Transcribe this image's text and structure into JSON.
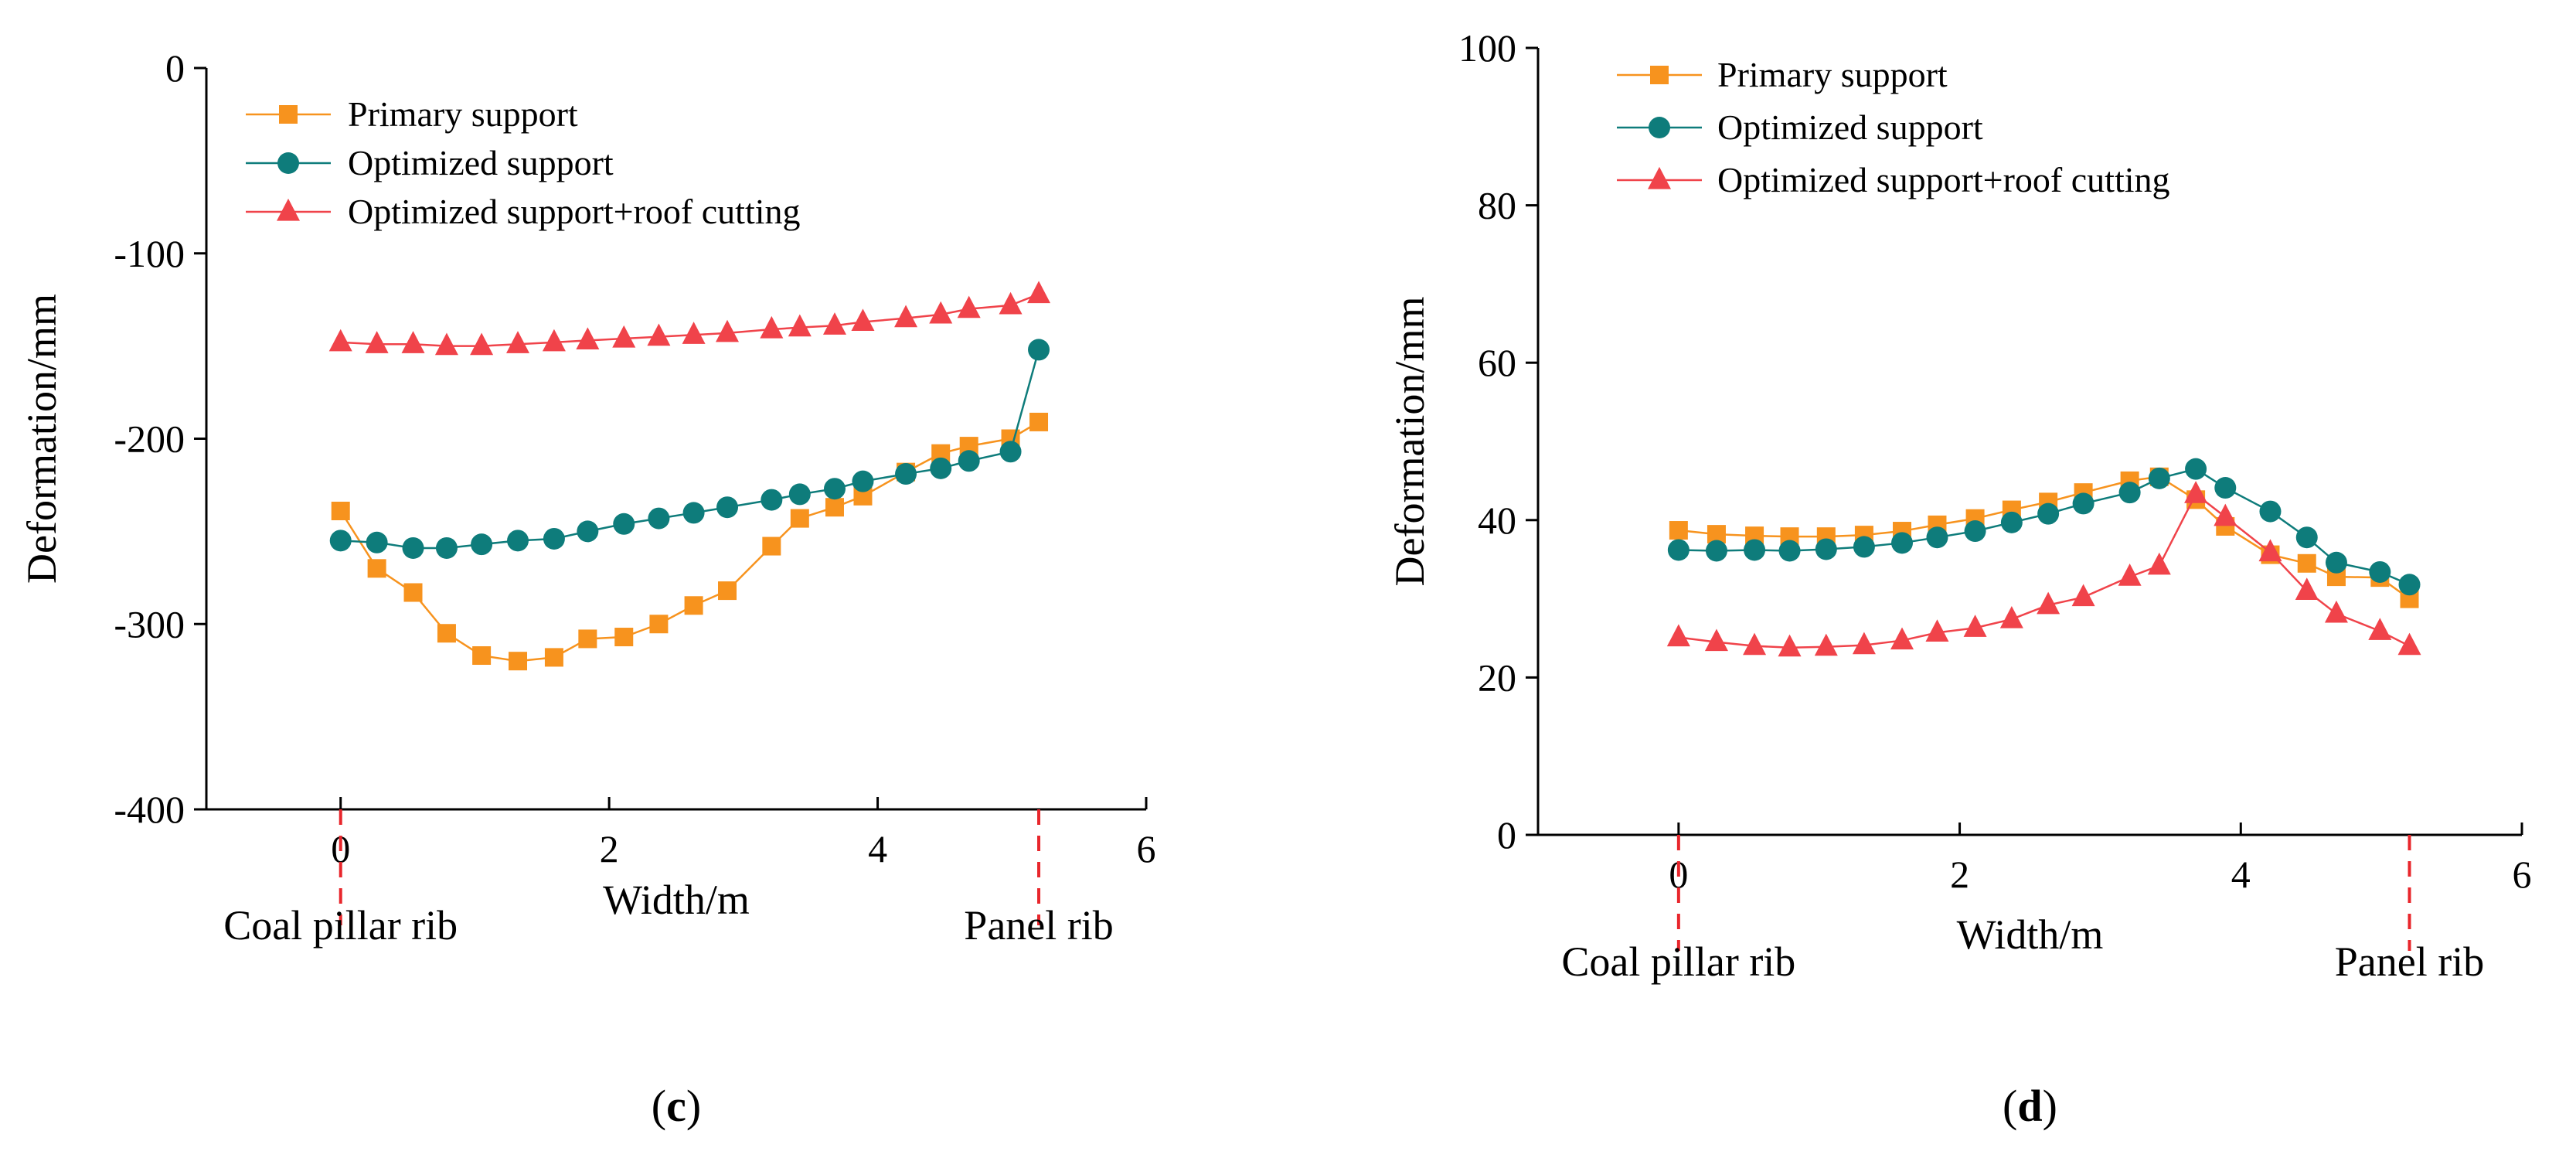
{
  "chart_data": [
    {
      "type": "line",
      "panel_label": "c",
      "xlabel": "Width/m",
      "ylabel": "Deformation/mm",
      "xlim": [
        -1,
        6
      ],
      "ylim": [
        -400,
        0
      ],
      "xticks": [
        0,
        2,
        4,
        6
      ],
      "yticks": [
        0,
        -100,
        -200,
        -300,
        -400
      ],
      "left_marker_label": "Coal pillar rib",
      "right_marker_label": "Panel rib",
      "marker_x": [
        0,
        5.2
      ],
      "legend_position": "top-left",
      "series": [
        {
          "name": "Primary support",
          "color": "#F7931E",
          "marker": "square",
          "x": [
            0,
            0.27,
            0.54,
            0.79,
            1.05,
            1.32,
            1.59,
            1.84,
            2.11,
            2.37,
            2.63,
            2.88,
            3.21,
            3.42,
            3.68,
            3.89,
            4.21,
            4.47,
            4.68,
            4.99,
            5.2
          ],
          "y": [
            -239,
            -270,
            -283,
            -305,
            -317,
            -320,
            -318,
            -308,
            -307,
            -300,
            -290,
            -282,
            -258,
            -243,
            -237,
            -231,
            -218,
            -208,
            -204,
            -200,
            -191
          ]
        },
        {
          "name": "Optimized support",
          "color": "#0E7C7B",
          "marker": "circle",
          "x": [
            0,
            0.27,
            0.54,
            0.79,
            1.05,
            1.32,
            1.59,
            1.84,
            2.11,
            2.37,
            2.63,
            2.88,
            3.21,
            3.42,
            3.68,
            3.89,
            4.21,
            4.47,
            4.68,
            4.99,
            5.2
          ],
          "y": [
            -255,
            -256,
            -259,
            -259,
            -257,
            -255,
            -254,
            -250,
            -246,
            -243,
            -240,
            -237,
            -233,
            -230,
            -227,
            -223,
            -219,
            -216,
            -212,
            -207,
            -152
          ]
        },
        {
          "name": "Optimized support+roof cutting",
          "color": "#F0434A",
          "marker": "triangle",
          "x": [
            0,
            0.27,
            0.54,
            0.79,
            1.05,
            1.32,
            1.59,
            1.84,
            2.11,
            2.37,
            2.63,
            2.88,
            3.21,
            3.42,
            3.68,
            3.89,
            4.21,
            4.47,
            4.68,
            4.99,
            5.2
          ],
          "y": [
            -148,
            -149,
            -149,
            -150,
            -150,
            -149,
            -148,
            -147,
            -146,
            -145,
            -144,
            -143,
            -141,
            -140,
            -139,
            -137,
            -135,
            -133,
            -130,
            -128,
            -122
          ]
        }
      ]
    },
    {
      "type": "line",
      "panel_label": "d",
      "xlabel": "Width/m",
      "ylabel": "Deformation/mm",
      "xlim": [
        -1,
        6
      ],
      "ylim": [
        0,
        100
      ],
      "xticks": [
        0,
        2,
        4,
        6
      ],
      "yticks": [
        0,
        20,
        40,
        60,
        80,
        100
      ],
      "left_marker_label": "Coal pillar rib",
      "right_marker_label": "Panel rib",
      "marker_x": [
        0,
        5.2
      ],
      "legend_position": "top-left",
      "series": [
        {
          "name": "Primary support",
          "color": "#F7931E",
          "marker": "square",
          "x": [
            0,
            0.27,
            0.54,
            0.79,
            1.05,
            1.32,
            1.59,
            1.84,
            2.11,
            2.37,
            2.63,
            2.88,
            3.21,
            3.42,
            3.68,
            3.89,
            4.21,
            4.47,
            4.68,
            4.99,
            5.2
          ],
          "y": [
            38.7,
            38.2,
            38.0,
            37.9,
            37.9,
            38.1,
            38.6,
            39.4,
            40.2,
            41.3,
            42.3,
            43.5,
            45.0,
            45.5,
            42.6,
            39.2,
            35.6,
            34.5,
            32.8,
            32.7,
            30.0
          ]
        },
        {
          "name": "Optimized support",
          "color": "#0E7C7B",
          "marker": "circle",
          "x": [
            0,
            0.27,
            0.54,
            0.79,
            1.05,
            1.32,
            1.59,
            1.84,
            2.11,
            2.37,
            2.63,
            2.88,
            3.21,
            3.42,
            3.68,
            3.89,
            4.21,
            4.47,
            4.68,
            4.99,
            5.2
          ],
          "y": [
            36.2,
            36.1,
            36.2,
            36.1,
            36.3,
            36.6,
            37.1,
            37.8,
            38.6,
            39.7,
            40.8,
            42.1,
            43.5,
            45.3,
            46.5,
            44.1,
            41.1,
            37.8,
            34.6,
            33.4,
            31.8
          ]
        },
        {
          "name": "Optimized support+roof cutting",
          "color": "#F0434A",
          "marker": "triangle",
          "x": [
            0,
            0.27,
            0.54,
            0.79,
            1.05,
            1.32,
            1.59,
            1.84,
            2.11,
            2.37,
            2.63,
            2.88,
            3.21,
            3.42,
            3.68,
            3.89,
            4.21,
            4.47,
            4.68,
            4.99,
            5.2
          ],
          "y": [
            25.1,
            24.5,
            24.0,
            23.8,
            23.9,
            24.1,
            24.7,
            25.7,
            26.3,
            27.4,
            29.2,
            30.2,
            32.8,
            34.2,
            43.3,
            40.4,
            35.9,
            31.0,
            28.1,
            25.9,
            24.0
          ]
        }
      ]
    }
  ]
}
